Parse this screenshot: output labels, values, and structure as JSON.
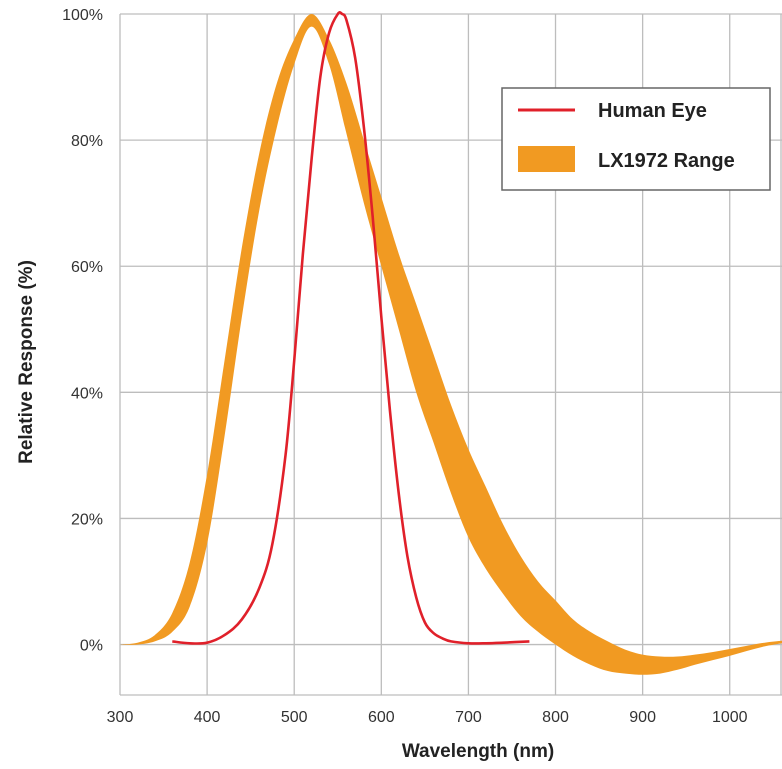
{
  "chart_data": {
    "type": "line",
    "xlabel": "Wavelength (nm)",
    "ylabel": "Relative Response (%)",
    "xlim": [
      300,
      1060
    ],
    "ylim": [
      -8,
      100
    ],
    "x_ticks": [
      300,
      400,
      500,
      600,
      700,
      800,
      900,
      1000
    ],
    "x_tick_labels": [
      "300",
      "400",
      "500",
      "600",
      "700",
      "800",
      "900",
      "1000"
    ],
    "y_ticks": [
      0,
      20,
      40,
      60,
      80,
      100
    ],
    "y_tick_labels": [
      "0%",
      "20%",
      "40%",
      "60%",
      "80%",
      "100%"
    ],
    "grid": true,
    "legend_position": "top-right",
    "series": [
      {
        "name": "Human Eye",
        "kind": "line",
        "color": "#e0202a",
        "x": [
          360,
          380,
          400,
          420,
          440,
          460,
          475,
          490,
          500,
          510,
          520,
          530,
          540,
          550,
          555,
          560,
          570,
          580,
          590,
          600,
          610,
          620,
          630,
          640,
          650,
          660,
          670,
          680,
          700,
          720,
          740,
          770
        ],
        "y": [
          0.5,
          0.2,
          0.3,
          1.5,
          4,
          9,
          16,
          30,
          45,
          62,
          77,
          90,
          97,
          100,
          100,
          99,
          93,
          82,
          68,
          52,
          37,
          24,
          14,
          7.5,
          3.5,
          1.8,
          1,
          0.5,
          0.2,
          0.2,
          0.3,
          0.5
        ]
      },
      {
        "name": "LX1972 Range",
        "kind": "band",
        "color": "#f19a22",
        "x": [
          300,
          320,
          340,
          360,
          380,
          400,
          420,
          440,
          460,
          480,
          500,
          520,
          540,
          560,
          580,
          600,
          620,
          640,
          660,
          680,
          700,
          720,
          740,
          760,
          780,
          800,
          820,
          840,
          860,
          880,
          900,
          920,
          940,
          960,
          980,
          1000,
          1020,
          1040,
          1060
        ],
        "upper": [
          0,
          0.3,
          1.5,
          5,
          13,
          27,
          45,
          63,
          78,
          89,
          96,
          100,
          96,
          89,
          80,
          71,
          62,
          54,
          46,
          38,
          31,
          25,
          19,
          14,
          10,
          7,
          4,
          2,
          0.5,
          -0.8,
          -1.6,
          -1.9,
          -1.9,
          -1.6,
          -1.2,
          -0.7,
          -0.2,
          0.3,
          0.6
        ],
        "lower": [
          0,
          0,
          0.5,
          2,
          6,
          16,
          33,
          52,
          69,
          82,
          92,
          98,
          92,
          81,
          70,
          60,
          50,
          40,
          32,
          24,
          17,
          12,
          8,
          4.5,
          2,
          0,
          -1.8,
          -3.2,
          -4.2,
          -4.6,
          -4.8,
          -4.6,
          -4,
          -3.2,
          -2.5,
          -1.8,
          -1,
          -0.3,
          0.2
        ]
      }
    ]
  }
}
